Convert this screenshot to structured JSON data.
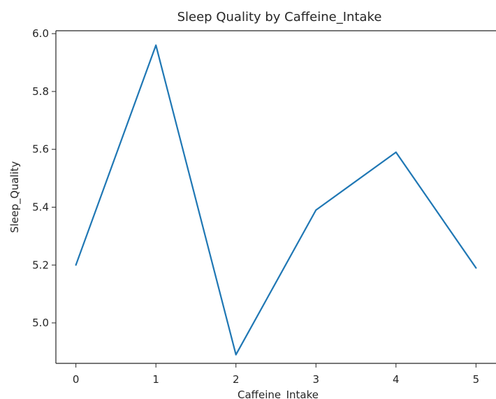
{
  "chart_data": {
    "type": "line",
    "title": "Sleep Quality by Caffeine_Intake",
    "xlabel": "Caffeine_Intake",
    "ylabel": "Sleep_Quality",
    "x": [
      0,
      1,
      2,
      3,
      4,
      5
    ],
    "series": [
      {
        "values": [
          5.2,
          5.96,
          4.89,
          5.39,
          5.59,
          5.19
        ]
      }
    ],
    "xticks": [
      "0",
      "1",
      "2",
      "3",
      "4",
      "5"
    ],
    "yticks": [
      "5.0",
      "5.2",
      "5.4",
      "5.6",
      "5.8",
      "6.0"
    ],
    "xlim": [
      -0.25,
      5.25
    ],
    "ylim": [
      4.86,
      6.01
    ],
    "grid": false,
    "line_color": "#1f77b4",
    "axes_color": "#262626"
  }
}
